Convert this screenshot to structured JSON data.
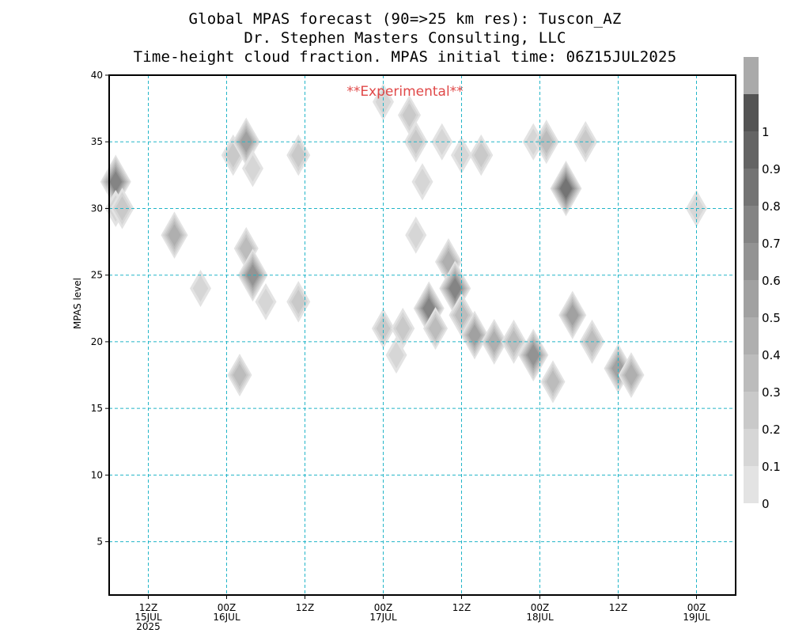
{
  "title_lines": [
    "Global MPAS forecast (90=>25 km res): Tuscon_AZ",
    "Dr. Stephen Masters Consulting, LLC",
    "Time-height cloud fraction.   MPAS initial time: 06Z15JUL2025"
  ],
  "chart_data": {
    "type": "heatmap",
    "watermark": "**Experimental**",
    "ylabel": "MPAS level",
    "xlim_hours": [
      6,
      102
    ],
    "ylim": [
      1,
      40
    ],
    "grid": true,
    "y_ticks": [
      5,
      10,
      15,
      20,
      25,
      30,
      35,
      40
    ],
    "x_ticks": [
      {
        "hour": 12,
        "lines": [
          "12Z",
          "15JUL",
          "2025"
        ]
      },
      {
        "hour": 24,
        "lines": [
          "00Z",
          "16JUL"
        ]
      },
      {
        "hour": 36,
        "lines": [
          "12Z"
        ]
      },
      {
        "hour": 48,
        "lines": [
          "00Z",
          "17JUL"
        ]
      },
      {
        "hour": 60,
        "lines": [
          "12Z"
        ]
      },
      {
        "hour": 72,
        "lines": [
          "00Z",
          "18JUL"
        ]
      },
      {
        "hour": 84,
        "lines": [
          "12Z"
        ]
      },
      {
        "hour": 96,
        "lines": [
          "00Z",
          "19JUL"
        ]
      }
    ],
    "colorbar_levels": [
      0,
      0.1,
      0.2,
      0.3,
      0.4,
      0.5,
      0.6,
      0.7,
      0.8,
      0.9,
      1
    ],
    "colorbar_colors": [
      "#e3e3e3",
      "#d6d6d6",
      "#c9c9c9",
      "#bcbcbc",
      "#afafaf",
      "#a1a1a1",
      "#939393",
      "#848484",
      "#747474",
      "#646464",
      "#545454",
      "#aaaaaa"
    ],
    "cloud_cells": [
      {
        "hour": 7,
        "level": 32,
        "value": 0.75
      },
      {
        "hour": 7,
        "level": 30,
        "value": 0.15
      },
      {
        "hour": 8,
        "level": 30,
        "value": 0.3
      },
      {
        "hour": 16,
        "level": 28,
        "value": 0.5
      },
      {
        "hour": 20,
        "level": 24,
        "value": 0.15
      },
      {
        "hour": 25,
        "level": 34,
        "value": 0.3
      },
      {
        "hour": 27,
        "level": 35,
        "value": 0.55
      },
      {
        "hour": 26,
        "level": 17.5,
        "value": 0.35
      },
      {
        "hour": 27,
        "level": 27,
        "value": 0.35
      },
      {
        "hour": 28,
        "level": 25,
        "value": 0.7
      },
      {
        "hour": 28,
        "level": 33,
        "value": 0.15
      },
      {
        "hour": 30,
        "level": 23,
        "value": 0.15
      },
      {
        "hour": 35,
        "level": 34,
        "value": 0.3
      },
      {
        "hour": 35,
        "level": 23,
        "value": 0.3
      },
      {
        "hour": 48,
        "level": 21,
        "value": 0.25
      },
      {
        "hour": 48,
        "level": 38,
        "value": 0.15
      },
      {
        "hour": 50,
        "level": 19,
        "value": 0.15
      },
      {
        "hour": 51,
        "level": 21,
        "value": 0.3
      },
      {
        "hour": 52,
        "level": 37,
        "value": 0.25
      },
      {
        "hour": 53,
        "level": 35,
        "value": 0.3
      },
      {
        "hour": 53,
        "level": 28,
        "value": 0.15
      },
      {
        "hour": 54,
        "level": 32,
        "value": 0.15
      },
      {
        "hour": 55,
        "level": 22.5,
        "value": 0.75
      },
      {
        "hour": 56,
        "level": 21,
        "value": 0.35
      },
      {
        "hour": 57,
        "level": 35,
        "value": 0.15
      },
      {
        "hour": 58,
        "level": 26,
        "value": 0.5
      },
      {
        "hour": 59,
        "level": 24,
        "value": 0.8
      },
      {
        "hour": 60,
        "level": 22,
        "value": 0.4
      },
      {
        "hour": 60,
        "level": 34,
        "value": 0.15
      },
      {
        "hour": 62,
        "level": 20.5,
        "value": 0.55
      },
      {
        "hour": 63,
        "level": 34,
        "value": 0.3
      },
      {
        "hour": 65,
        "level": 20,
        "value": 0.45
      },
      {
        "hour": 68,
        "level": 20,
        "value": 0.4
      },
      {
        "hour": 71,
        "level": 19,
        "value": 0.7
      },
      {
        "hour": 71,
        "level": 35,
        "value": 0.15
      },
      {
        "hour": 73,
        "level": 35,
        "value": 0.4
      },
      {
        "hour": 74,
        "level": 17,
        "value": 0.35
      },
      {
        "hour": 76,
        "level": 31.5,
        "value": 0.9
      },
      {
        "hour": 77,
        "level": 22,
        "value": 0.55
      },
      {
        "hour": 79,
        "level": 35,
        "value": 0.3
      },
      {
        "hour": 80,
        "level": 20,
        "value": 0.4
      },
      {
        "hour": 84,
        "level": 18,
        "value": 0.6
      },
      {
        "hour": 86,
        "level": 17.5,
        "value": 0.45
      },
      {
        "hour": 96,
        "level": 30,
        "value": 0.15
      }
    ]
  }
}
